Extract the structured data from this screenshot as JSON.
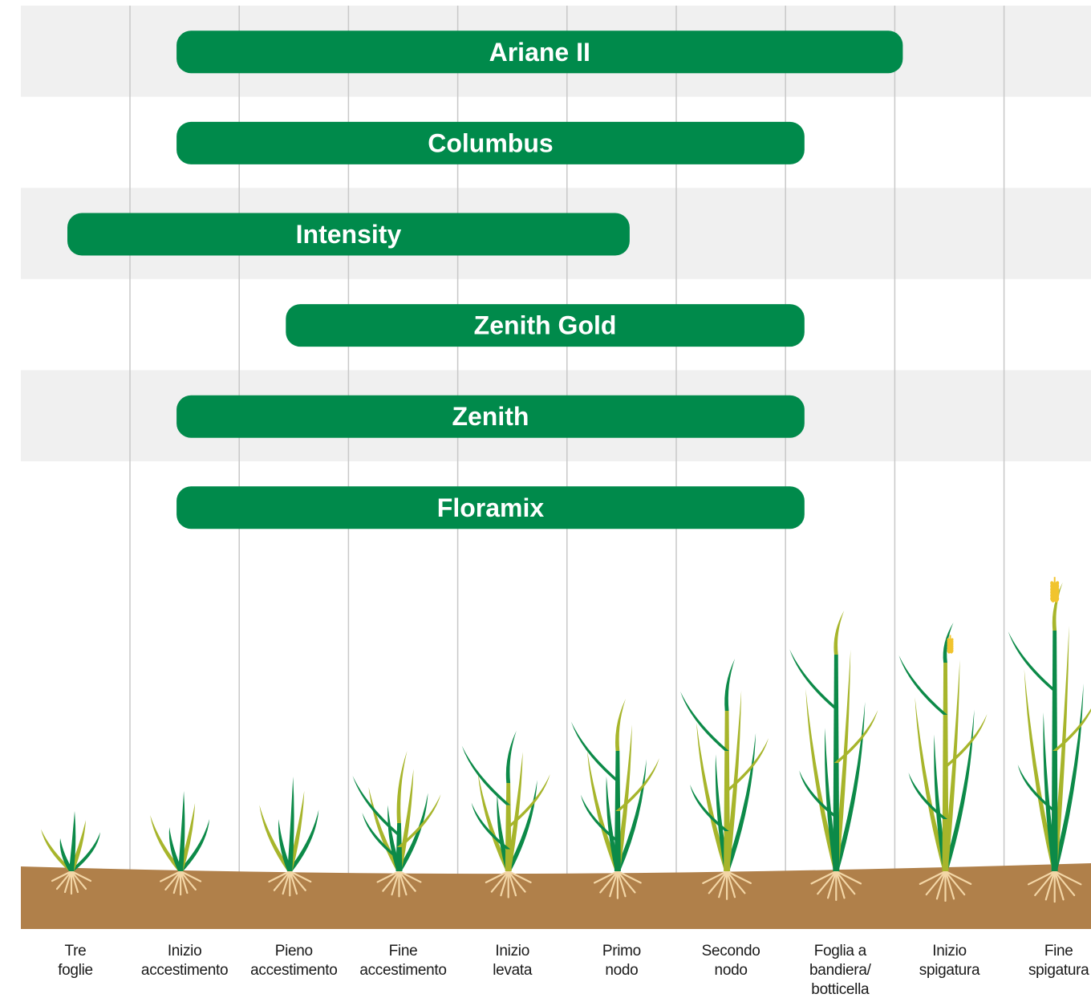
{
  "chart_data": {
    "type": "gantt",
    "title": "",
    "xlabel": "",
    "ylabel": "",
    "categories": [
      [
        "Tre",
        "foglie"
      ],
      [
        "Inizio",
        "accestimento"
      ],
      [
        "Pieno",
        "accestimento"
      ],
      [
        "Fine",
        "accestimento"
      ],
      [
        "Inizio",
        "levata"
      ],
      [
        "Primo",
        "nodo"
      ],
      [
        "Secondo",
        "nodo"
      ],
      [
        "Foglia a",
        "bandiera/",
        "botticella"
      ],
      [
        "Inizio",
        "spigatura"
      ],
      [
        "Fine",
        "spigatura"
      ]
    ],
    "series": [
      {
        "name": "Ariane II",
        "start": 1,
        "end": 7.5
      },
      {
        "name": "Columbus",
        "start": 1,
        "end": 6.6
      },
      {
        "name": "Intensity",
        "start": 0,
        "end": 5
      },
      {
        "name": "Zenith Gold",
        "start": 2,
        "end": 6.6
      },
      {
        "name": "Zenith",
        "start": 1,
        "end": 6.6
      },
      {
        "name": "Floramix",
        "start": 1,
        "end": 6.6
      }
    ],
    "grid": true,
    "colors": {
      "bar": "#008A4B",
      "band_shade": "#F0F0F0",
      "gridline": "#C8C8C8",
      "soil": "#B0804A",
      "leaf_dark": "#0C8A48",
      "leaf_light": "#A7B52B",
      "root": "#F3D6A6",
      "ear": "#F1C42E"
    }
  }
}
